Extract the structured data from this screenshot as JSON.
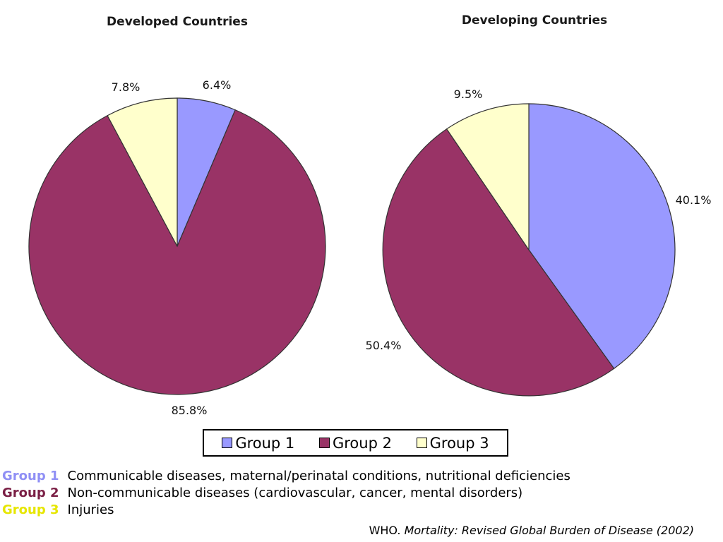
{
  "chart_data": [
    {
      "type": "pie",
      "title": "Developed Countries",
      "categories": [
        "Group 1",
        "Group 2",
        "Group 3"
      ],
      "values": [
        6.4,
        85.8,
        7.8
      ],
      "labels": [
        "6.4%",
        "85.8%",
        "7.8%"
      ]
    },
    {
      "type": "pie",
      "title": "Developing Countries",
      "categories": [
        "Group 1",
        "Group 2",
        "Group 3"
      ],
      "values": [
        40.1,
        50.4,
        9.5
      ],
      "labels": [
        "40.1%",
        "50.4%",
        "9.5%"
      ]
    }
  ],
  "colors": {
    "group1": "#9999ff",
    "group2": "#993366",
    "group3": "#ffffcc",
    "outline": "#333333"
  },
  "legend": {
    "items": [
      "Group 1",
      "Group 2",
      "Group 3"
    ]
  },
  "definitions": [
    {
      "key": "Group 1",
      "text": "Communicable diseases, maternal/perinatal conditions, nutritional deficiencies"
    },
    {
      "key": "Group 2",
      "text": "Non-communicable diseases (cardiovascular, cancer, mental disorders)"
    },
    {
      "key": "Group 3",
      "text": "Injuries"
    }
  ],
  "source": {
    "author": "WHO.",
    "citation": "Mortality: Revised Global Burden of Disease (2002)"
  }
}
